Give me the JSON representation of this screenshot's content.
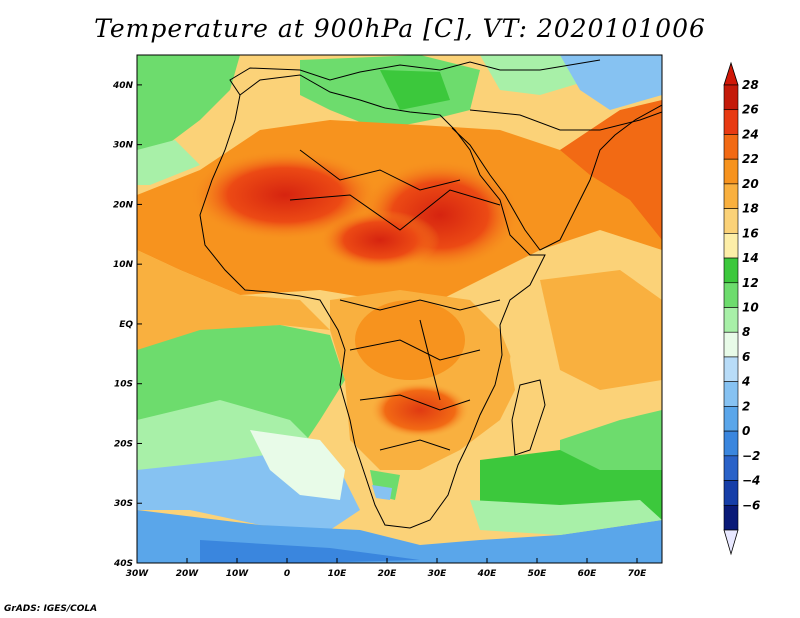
{
  "title": "Temperature at 900hPa [C], VT: 2020101006",
  "credit": "GrADS: IGES/COLA",
  "map": {
    "lon_range": [
      -30,
      75
    ],
    "lat_range": [
      -40,
      45
    ],
    "lon_ticks": [
      {
        "value": -30,
        "label": "30W"
      },
      {
        "value": -20,
        "label": "20W"
      },
      {
        "value": -10,
        "label": "10W"
      },
      {
        "value": 0,
        "label": "0"
      },
      {
        "value": 10,
        "label": "10E"
      },
      {
        "value": 20,
        "label": "20E"
      },
      {
        "value": 30,
        "label": "30E"
      },
      {
        "value": 40,
        "label": "40E"
      },
      {
        "value": 50,
        "label": "50E"
      },
      {
        "value": 60,
        "label": "60E"
      },
      {
        "value": 70,
        "label": "70E"
      }
    ],
    "lat_ticks": [
      {
        "value": 40,
        "label": "40N"
      },
      {
        "value": 30,
        "label": "30N"
      },
      {
        "value": 20,
        "label": "20N"
      },
      {
        "value": 10,
        "label": "10N"
      },
      {
        "value": 0,
        "label": "EQ"
      },
      {
        "value": -10,
        "label": "10S"
      },
      {
        "value": -20,
        "label": "20S"
      },
      {
        "value": -30,
        "label": "30S"
      },
      {
        "value": -40,
        "label": "40S"
      }
    ]
  },
  "colorbar": {
    "levels": [
      28,
      26,
      24,
      22,
      20,
      18,
      16,
      14,
      12,
      10,
      8,
      6,
      4,
      2,
      0,
      -2,
      -4,
      -6
    ],
    "labels": [
      "28",
      "26",
      "24",
      "22",
      "20",
      "18",
      "16",
      "14",
      "12",
      "10",
      "8",
      "6",
      "4",
      "2",
      "0",
      "−2",
      "−4",
      "−6"
    ],
    "colors": [
      "#c41a0a",
      "#e83a12",
      "#f26a14",
      "#f7931e",
      "#f9b03f",
      "#fbd278",
      "#fdeea8",
      "#3cc83c",
      "#6ddc6d",
      "#a8f0a8",
      "#e8fbe8",
      "#b8dcf8",
      "#86c2f2",
      "#5aa6ea",
      "#3a86de",
      "#2a62c8",
      "#163ea8",
      "#0a1a78"
    ],
    "top_arrow_color": "#d01808",
    "bottom_arrow_color": "#e8e8ff"
  }
}
